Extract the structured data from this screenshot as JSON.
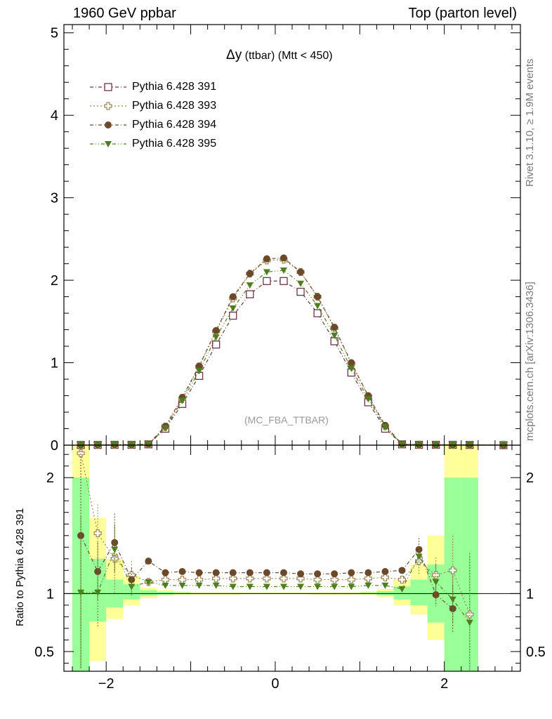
{
  "header": {
    "left": "1960 GeV ppbar",
    "right": "Top (parton level)"
  },
  "side_labels": {
    "rivet": "Rivet 3.1.10, ≥ 1.9M events",
    "mcplots": "mcplots.cern.ch [arXiv:1306.3436]"
  },
  "watermark": "(MC_FBA_TTBAR)",
  "chart_data": [
    {
      "type": "line",
      "title_main": "Δy",
      "title_rest": "(ttbar) (Mtt < 450)",
      "xlim": [
        -2.5,
        2.9
      ],
      "ylim": [
        0,
        5.1
      ],
      "yticks": [
        0,
        1,
        2,
        3,
        4,
        5
      ],
      "x": [
        -2.3,
        -2.1,
        -1.9,
        -1.7,
        -1.5,
        -1.3,
        -1.1,
        -0.9,
        -0.7,
        -0.5,
        -0.3,
        -0.1,
        0.1,
        0.3,
        0.5,
        0.7,
        0.9,
        1.1,
        1.3,
        1.5,
        1.7,
        1.9,
        2.1,
        2.3,
        2.7
      ],
      "series": [
        {
          "name": "Pythia 6.428 391",
          "color": "#6b3548",
          "marker": "open-square",
          "dash": "5,3,1,3",
          "values": [
            0.003,
            0.003,
            0.004,
            0.004,
            0.01,
            0.2,
            0.5,
            0.84,
            1.22,
            1.57,
            1.83,
            1.99,
            1.99,
            1.86,
            1.6,
            1.26,
            0.88,
            0.52,
            0.2,
            0.01,
            0.004,
            0.004,
            0.004,
            0.003,
            0.0
          ]
        },
        {
          "name": "Pythia 6.428 393",
          "color": "#9e8456",
          "marker": "open-cross",
          "dash": "2,3",
          "values": [
            0.006,
            0.004,
            0.005,
            0.005,
            0.011,
            0.22,
            0.56,
            0.95,
            1.38,
            1.78,
            2.08,
            2.24,
            2.25,
            2.1,
            1.8,
            1.42,
            0.99,
            0.59,
            0.23,
            0.011,
            0.006,
            0.005,
            0.005,
            0.004,
            0.006
          ]
        },
        {
          "name": "Pythia 6.428 394",
          "color": "#6b4a2b",
          "marker": "filled-circle",
          "dash": "5,3,1,3",
          "values": [
            0.004,
            0.004,
            0.006,
            0.005,
            0.012,
            0.23,
            0.58,
            0.96,
            1.39,
            1.8,
            2.08,
            2.26,
            2.27,
            2.1,
            1.8,
            1.43,
            1.0,
            0.6,
            0.24,
            0.012,
            0.006,
            0.004,
            0.004,
            0.004,
            0.0
          ]
        },
        {
          "name": "Pythia 6.428 395",
          "color": "#4e7f1c",
          "marker": "filled-triangle-down",
          "dash": "5,3,1,3,1,3",
          "values": [
            0.004,
            0.003,
            0.005,
            0.005,
            0.011,
            0.21,
            0.54,
            0.9,
            1.31,
            1.66,
            1.94,
            2.1,
            2.12,
            1.96,
            1.69,
            1.33,
            0.93,
            0.56,
            0.22,
            0.011,
            0.005,
            0.004,
            0.004,
            0.003,
            0.0
          ]
        }
      ]
    },
    {
      "type": "line",
      "ylabel": "Ratio to Pythia 6.428 391",
      "xlim": [
        -2.5,
        2.9
      ],
      "ylim": [
        0.33,
        2.28
      ],
      "yticks": [
        0.5,
        1,
        2
      ],
      "xticks": [
        -2,
        0,
        2
      ],
      "tick_labels": {
        "-2": "−2",
        "0": "0",
        "2": "2"
      },
      "band_edges": [
        -2.4,
        -2.2,
        -2.0,
        -1.8,
        -1.6,
        -1.4,
        -1.2,
        -1.0,
        -0.8,
        -0.6,
        -0.4,
        -0.2,
        0.0,
        0.2,
        0.4,
        0.6,
        0.8,
        1.0,
        1.2,
        1.4,
        1.6,
        1.8,
        2.0,
        2.2,
        2.4
      ],
      "band_yellow": [
        [
          0.33,
          2.28
        ],
        [
          0.42,
          1.65
        ],
        [
          0.78,
          1.3
        ],
        [
          0.9,
          1.15
        ],
        [
          0.96,
          1.05
        ],
        [
          0.98,
          1.03
        ],
        [
          0.99,
          1.02
        ],
        [
          0.99,
          1.01
        ],
        [
          0.99,
          1.01
        ],
        [
          0.99,
          1.01
        ],
        [
          0.995,
          1.01
        ],
        [
          0.995,
          1.01
        ],
        [
          0.995,
          1.01
        ],
        [
          0.995,
          1.01
        ],
        [
          0.99,
          1.01
        ],
        [
          0.99,
          1.01
        ],
        [
          0.99,
          1.01
        ],
        [
          0.99,
          1.02
        ],
        [
          0.97,
          1.04
        ],
        [
          0.9,
          1.12
        ],
        [
          0.82,
          1.25
        ],
        [
          0.6,
          1.5
        ],
        [
          0.33,
          2.28
        ],
        [
          0.33,
          2.28
        ]
      ],
      "band_green": [
        [
          0.33,
          2.0
        ],
        [
          0.76,
          1.3
        ],
        [
          0.88,
          1.12
        ],
        [
          0.95,
          1.08
        ],
        [
          0.98,
          1.03
        ],
        [
          0.99,
          1.015
        ],
        [
          0.995,
          1.01
        ],
        [
          0.995,
          1.005
        ],
        [
          0.995,
          1.005
        ],
        [
          0.995,
          1.005
        ],
        [
          0.997,
          1.005
        ],
        [
          0.997,
          1.005
        ],
        [
          0.997,
          1.005
        ],
        [
          0.997,
          1.005
        ],
        [
          0.995,
          1.005
        ],
        [
          0.995,
          1.005
        ],
        [
          0.995,
          1.005
        ],
        [
          0.995,
          1.01
        ],
        [
          0.985,
          1.02
        ],
        [
          0.95,
          1.06
        ],
        [
          0.9,
          1.12
        ],
        [
          0.75,
          1.25
        ],
        [
          0.33,
          2.0
        ],
        [
          0.33,
          2.0
        ]
      ],
      "x": [
        -2.3,
        -2.1,
        -1.9,
        -1.7,
        -1.5,
        -1.3,
        -1.1,
        -0.9,
        -0.7,
        -0.5,
        -0.3,
        -0.1,
        0.1,
        0.3,
        0.5,
        0.7,
        0.9,
        1.1,
        1.3,
        1.5,
        1.7,
        1.9,
        2.1,
        2.3
      ],
      "series": [
        {
          "name": "Pythia 6.428 393",
          "color": "#9e8456",
          "marker": "open-cross",
          "dash": "2,3",
          "values": [
            2.21,
            1.52,
            1.3,
            1.16,
            1.1,
            1.12,
            1.12,
            1.12,
            1.13,
            1.13,
            1.13,
            1.13,
            1.13,
            1.13,
            1.12,
            1.12,
            1.12,
            1.13,
            1.14,
            1.12,
            1.28,
            1.16,
            1.2,
            0.82
          ],
          "errors": [
            0.25,
            0.25,
            0.3,
            0.12,
            0.03,
            0.02,
            0.01,
            0.01,
            0.01,
            0.01,
            0.01,
            0.01,
            0.01,
            0.01,
            0.01,
            0.01,
            0.01,
            0.01,
            0.02,
            0.03,
            0.12,
            0.15,
            0.3,
            0.5
          ]
        },
        {
          "name": "Pythia 6.428 394",
          "color": "#6b4a2b",
          "marker": "filled-circle",
          "dash": "5,3,1,3",
          "values": [
            1.5,
            1.19,
            1.44,
            1.12,
            1.28,
            1.18,
            1.19,
            1.18,
            1.18,
            1.18,
            1.18,
            1.18,
            1.18,
            1.17,
            1.17,
            1.17,
            1.18,
            1.18,
            1.19,
            1.2,
            1.38,
            0.99,
            0.87,
            0.0
          ],
          "errors": [
            1.15,
            0.25,
            0.25,
            0.1,
            0.02,
            0.02,
            0.01,
            0.01,
            0.01,
            0.01,
            0.01,
            0.01,
            0.01,
            0.01,
            0.01,
            0.01,
            0.01,
            0.01,
            0.02,
            0.02,
            0.1,
            0.1,
            0.2,
            0.0
          ]
        },
        {
          "name": "Pythia 6.428 395",
          "color": "#4e7f1c",
          "marker": "filled-triangle-down",
          "dash": "5,3,1,3,1,3",
          "values": [
            1.01,
            1.01,
            1.38,
            1.06,
            1.1,
            1.07,
            1.07,
            1.07,
            1.07,
            1.06,
            1.06,
            1.06,
            1.06,
            1.06,
            1.06,
            1.06,
            1.06,
            1.07,
            1.07,
            1.04,
            1.32,
            1.1,
            0.95,
            0.75
          ],
          "errors": [
            0.65,
            0.3,
            0.2,
            0.08,
            0.02,
            0.01,
            0.01,
            0.01,
            0.01,
            0.01,
            0.01,
            0.01,
            0.01,
            0.01,
            0.01,
            0.01,
            0.01,
            0.01,
            0.01,
            0.02,
            0.08,
            0.15,
            0.2,
            0.6
          ]
        }
      ]
    }
  ]
}
